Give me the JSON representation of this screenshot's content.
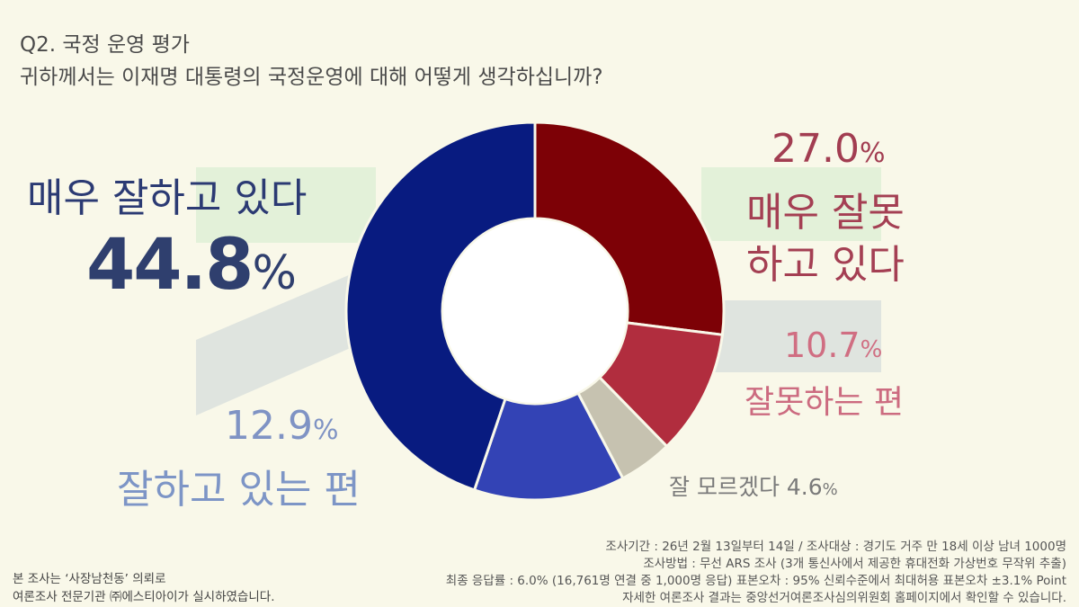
{
  "header": {
    "question": "Q2. 국정 운영 평가",
    "subtitle": "귀하께서는 이재명 대통령의 국정운영에 대해 어떻게 생각하십니까?"
  },
  "labels": {
    "very_good": {
      "text": "매우 잘하고 있다",
      "pct": "44.8",
      "unit": "%"
    },
    "good": {
      "pct": "12.9",
      "unit": "%",
      "text": "잘하고 있는 편"
    },
    "very_bad": {
      "pct": "27.0",
      "unit": "%",
      "text1": "매우 잘못",
      "text2": "하고 있다"
    },
    "bad": {
      "pct": "10.7",
      "unit": "%",
      "text": "잘못하는 편"
    },
    "unknown": {
      "text": "잘 모르겠다 ",
      "pct": "4.6",
      "unit": "%"
    }
  },
  "footer": {
    "right": [
      "조사기간 : 26년 2월 13일부터 14일 / 조사대상 : 경기도 거주 만 18세 이상 남녀 1000명",
      "조사방법 : 무선 ARS 조사 (3개 통신사에서 제공한 휴대전화 가상번호 무작위 추출)",
      "최종 응답률 : 6.0% (16,761명 연결 중 1,000명 응답) 표본오차 :  95% 신뢰수준에서 최대허용 표본오차 ±3.1% Point",
      "자세한 여론조사 결과는 중앙선거여론조사심의위원회 홈페이지에서 확인할 수 있습니다."
    ],
    "left": [
      "본 조사는 ‘사장남천동’ 의뢰로",
      "여론조사 전문기관 ㈜에스티아이가 실시하였습니다."
    ]
  },
  "chart_data": {
    "type": "donut",
    "title": "",
    "categories": [
      "매우 잘못 하고 있다",
      "잘못하는 편",
      "잘 모르겠다",
      "잘하고 있는 편",
      "매우 잘하고 있다"
    ],
    "values": [
      27.0,
      10.7,
      4.6,
      12.9,
      44.8
    ],
    "unit": "%",
    "start": "top, clockwise",
    "colors": [
      "#7d0106",
      "#b12d3e",
      "#c6c2b0",
      "#3343b5",
      "#081b80"
    ]
  }
}
